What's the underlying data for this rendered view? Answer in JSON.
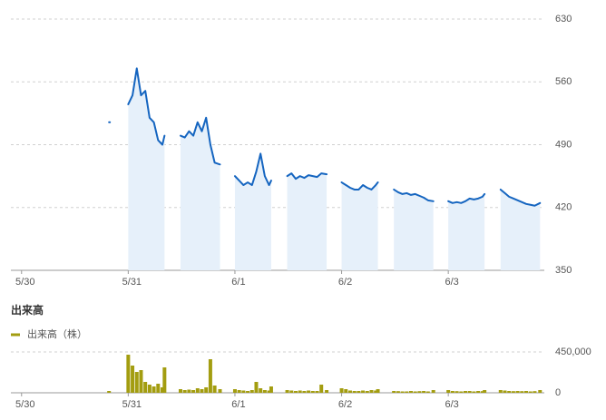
{
  "chart_data": [
    {
      "type": "line",
      "color": "#1565c0",
      "area_color": "#e6f0fa",
      "x": [
        0.82,
        0.9,
        1.0,
        1.04,
        1.08,
        1.12,
        1.16,
        1.2,
        1.24,
        1.28,
        1.32,
        1.34,
        1.42,
        1.49,
        1.53,
        1.57,
        1.61,
        1.65,
        1.69,
        1.73,
        1.77,
        1.81,
        1.86,
        1.93,
        2.0,
        2.04,
        2.08,
        2.12,
        2.16,
        2.2,
        2.24,
        2.28,
        2.32,
        2.34,
        2.42,
        2.49,
        2.53,
        2.57,
        2.61,
        2.65,
        2.69,
        2.73,
        2.77,
        2.81,
        2.86,
        2.93,
        3.0,
        3.04,
        3.08,
        3.12,
        3.16,
        3.2,
        3.24,
        3.28,
        3.32,
        3.34,
        3.42,
        3.49,
        3.53,
        3.57,
        3.61,
        3.65,
        3.69,
        3.73,
        3.77,
        3.81,
        3.86,
        3.93,
        4.0,
        4.04,
        4.08,
        4.12,
        4.16,
        4.2,
        4.24,
        4.28,
        4.32,
        4.34,
        4.42,
        4.49,
        4.53,
        4.57,
        4.61,
        4.65,
        4.69,
        4.73,
        4.77,
        4.81,
        4.86
      ],
      "values": [
        515,
        null,
        535,
        545,
        575,
        545,
        550,
        520,
        515,
        495,
        490,
        500,
        null,
        500,
        498,
        505,
        500,
        515,
        505,
        520,
        490,
        470,
        468,
        null,
        455,
        450,
        445,
        448,
        445,
        460,
        480,
        455,
        445,
        450,
        null,
        455,
        458,
        452,
        455,
        453,
        456,
        455,
        454,
        458,
        457,
        null,
        448,
        445,
        442,
        440,
        440,
        445,
        442,
        440,
        445,
        448,
        null,
        440,
        437,
        435,
        436,
        434,
        435,
        433,
        431,
        428,
        427,
        null,
        427,
        425,
        426,
        425,
        427,
        430,
        429,
        430,
        432,
        435,
        null,
        440,
        436,
        432,
        430,
        428,
        426,
        424,
        423,
        422,
        425
      ],
      "xlim": [
        -0.1,
        4.9
      ],
      "xticks": [
        {
          "value": 0,
          "label": "5/30"
        },
        {
          "value": 1,
          "label": "5/31"
        },
        {
          "value": 2,
          "label": "6/1"
        },
        {
          "value": 3,
          "label": "6/2"
        },
        {
          "value": 4,
          "label": "6/3"
        }
      ],
      "ylim": [
        350,
        630
      ],
      "yticks": [
        350,
        420,
        490,
        560,
        630
      ],
      "grid": true
    },
    {
      "type": "bar",
      "title": "出来高",
      "x": [
        0.82,
        0.9,
        1.0,
        1.04,
        1.08,
        1.12,
        1.16,
        1.2,
        1.24,
        1.28,
        1.32,
        1.34,
        1.42,
        1.49,
        1.53,
        1.57,
        1.61,
        1.65,
        1.69,
        1.73,
        1.77,
        1.81,
        1.86,
        1.93,
        2.0,
        2.04,
        2.08,
        2.12,
        2.16,
        2.2,
        2.24,
        2.28,
        2.32,
        2.34,
        2.42,
        2.49,
        2.53,
        2.57,
        2.61,
        2.65,
        2.69,
        2.73,
        2.77,
        2.81,
        2.86,
        2.93,
        3.0,
        3.04,
        3.08,
        3.12,
        3.16,
        3.2,
        3.24,
        3.28,
        3.32,
        3.34,
        3.42,
        3.49,
        3.53,
        3.57,
        3.61,
        3.65,
        3.69,
        3.73,
        3.77,
        3.81,
        3.86,
        3.93,
        4.0,
        4.04,
        4.08,
        4.12,
        4.16,
        4.2,
        4.24,
        4.28,
        4.32,
        4.34,
        4.42,
        4.49,
        4.53,
        4.57,
        4.61,
        4.65,
        4.69,
        4.73,
        4.77,
        4.81,
        4.86
      ],
      "series": [
        {
          "name": "出来高（株）",
          "color": "#a39d10",
          "values": [
            20000,
            null,
            420000,
            300000,
            230000,
            250000,
            120000,
            90000,
            70000,
            100000,
            60000,
            280000,
            null,
            40000,
            30000,
            35000,
            30000,
            50000,
            40000,
            60000,
            370000,
            80000,
            40000,
            null,
            40000,
            30000,
            25000,
            20000,
            30000,
            120000,
            50000,
            30000,
            25000,
            70000,
            null,
            30000,
            25000,
            20000,
            25000,
            20000,
            25000,
            20000,
            20000,
            90000,
            30000,
            null,
            50000,
            40000,
            25000,
            20000,
            20000,
            25000,
            20000,
            30000,
            25000,
            40000,
            null,
            20000,
            18000,
            15000,
            15000,
            20000,
            15000,
            18000,
            20000,
            15000,
            30000,
            null,
            30000,
            20000,
            18000,
            15000,
            20000,
            20000,
            15000,
            20000,
            18000,
            30000,
            null,
            30000,
            25000,
            20000,
            18000,
            20000,
            18000,
            20000,
            15000,
            18000,
            30000
          ]
        }
      ],
      "xlim": [
        -0.1,
        4.9
      ],
      "xticks": [
        {
          "value": 0,
          "label": "5/30"
        },
        {
          "value": 1,
          "label": "5/31"
        },
        {
          "value": 2,
          "label": "6/1"
        },
        {
          "value": 3,
          "label": "6/2"
        },
        {
          "value": 4,
          "label": "6/3"
        }
      ],
      "ylim": [
        0,
        450000
      ],
      "yticks": [
        0,
        {
          "value": 450000,
          "label": "450,000"
        }
      ],
      "grid": true
    }
  ]
}
